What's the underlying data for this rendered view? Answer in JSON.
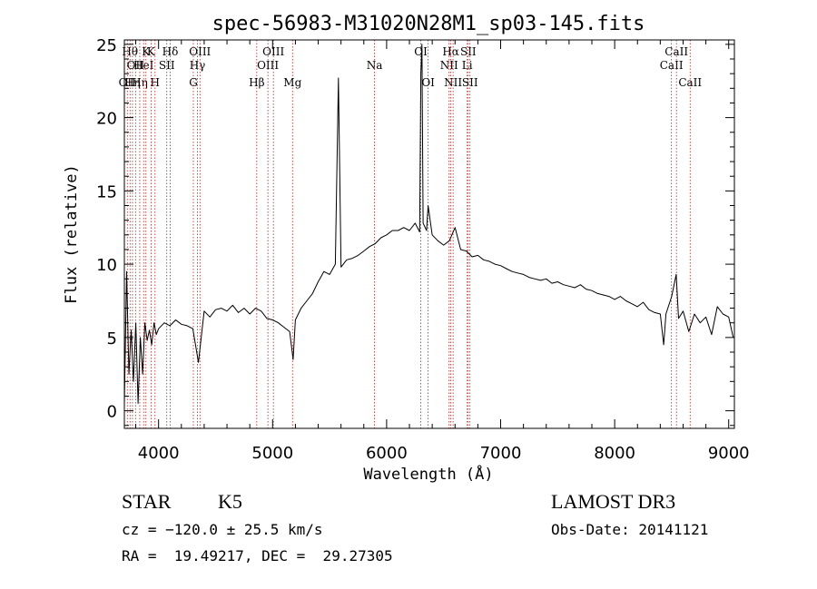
{
  "chart_data": {
    "type": "line",
    "title": "spec-56983-M31020N28M1_sp03-145.fits",
    "xlabel": "Wavelength (Å)",
    "ylabel": "Flux (relative)",
    "xlim": [
      3700,
      9050
    ],
    "ylim": [
      -1.2,
      25.3
    ],
    "xticks": [
      4000,
      5000,
      6000,
      7000,
      8000,
      9000
    ],
    "yticks": [
      0,
      5,
      10,
      15,
      20,
      25
    ],
    "grid": false,
    "legend": "none",
    "line_color": "#000000",
    "marker_color": "#b22222",
    "series": [
      {
        "x": [
          3700,
          3720,
          3740,
          3760,
          3780,
          3800,
          3820,
          3840,
          3860,
          3880,
          3900,
          3920,
          3940,
          3960,
          3980,
          4000,
          4050,
          4100,
          4150,
          4200,
          4250,
          4300,
          4350,
          4400,
          4450,
          4500,
          4550,
          4600,
          4650,
          4700,
          4750,
          4800,
          4850,
          4900,
          4950,
          5000,
          5050,
          5100,
          5150,
          5180,
          5200,
          5250,
          5300,
          5350,
          5400,
          5450,
          5500,
          5550,
          5577,
          5600,
          5650,
          5700,
          5750,
          5800,
          5850,
          5900,
          5950,
          6000,
          6050,
          6100,
          6150,
          6200,
          6250,
          6290,
          6300,
          6310,
          6320,
          6350,
          6364,
          6400,
          6450,
          6500,
          6550,
          6600,
          6650,
          6700,
          6750,
          6800,
          6850,
          6900,
          6950,
          7000,
          7050,
          7100,
          7150,
          7200,
          7250,
          7300,
          7350,
          7400,
          7450,
          7500,
          7550,
          7600,
          7650,
          7700,
          7750,
          7800,
          7850,
          7900,
          7950,
          8000,
          8050,
          8100,
          8150,
          8200,
          8250,
          8300,
          8350,
          8400,
          8430,
          8450,
          8500,
          8540,
          8560,
          8600,
          8650,
          8700,
          8750,
          8800,
          8850,
          8900,
          8950,
          9000,
          9040
        ],
        "y": [
          0.5,
          9.5,
          2.5,
          5.5,
          2.0,
          6.0,
          0.5,
          5.0,
          2.5,
          6.0,
          4.8,
          5.5,
          4.5,
          6.0,
          5.2,
          5.6,
          6.0,
          5.8,
          6.2,
          5.9,
          5.8,
          5.6,
          3.3,
          6.8,
          6.4,
          6.9,
          7.0,
          6.8,
          7.2,
          6.7,
          7.0,
          6.6,
          7.0,
          6.8,
          6.3,
          6.2,
          6.0,
          5.7,
          5.4,
          3.5,
          6.2,
          7.0,
          7.5,
          8.0,
          8.8,
          9.5,
          9.3,
          10.0,
          22.7,
          9.8,
          10.3,
          10.4,
          10.6,
          10.9,
          11.2,
          11.4,
          11.8,
          12.0,
          12.3,
          12.3,
          12.5,
          12.3,
          12.8,
          12.2,
          23.0,
          25.0,
          12.8,
          12.3,
          14.0,
          12.0,
          11.6,
          11.3,
          11.6,
          12.5,
          11.0,
          10.9,
          10.5,
          10.6,
          10.3,
          10.2,
          10.0,
          9.9,
          9.7,
          9.5,
          9.4,
          9.3,
          9.1,
          9.0,
          8.9,
          9.0,
          8.7,
          8.8,
          8.6,
          8.5,
          8.4,
          8.6,
          8.3,
          8.2,
          8.0,
          7.9,
          7.8,
          7.6,
          7.8,
          7.5,
          7.3,
          7.1,
          7.4,
          6.9,
          6.7,
          6.6,
          4.5,
          6.6,
          7.8,
          9.3,
          6.3,
          6.8,
          5.4,
          6.6,
          6.0,
          6.4,
          5.2,
          7.1,
          6.6,
          6.4,
          5.0
        ]
      }
    ],
    "line_markers": [
      {
        "x": 3726,
        "label": "OII",
        "row": 3
      },
      {
        "x": 3750,
        "label": "Hθ",
        "row": 1
      },
      {
        "x": 3771,
        "label": "Hη",
        "row": 3
      },
      {
        "x": 3798,
        "label": "OII",
        "row": 2
      },
      {
        "x": 3835,
        "label": "Hη",
        "row": 3
      },
      {
        "x": 3869,
        "label": "HeI",
        "row": 2
      },
      {
        "x": 3889,
        "label": "K",
        "row": 1
      },
      {
        "x": 3934,
        "label": "K",
        "row": 1
      },
      {
        "x": 3969,
        "label": "H",
        "row": 3
      },
      {
        "x": 4072,
        "label": "SII",
        "row": 2
      },
      {
        "x": 4102,
        "label": "Hδ",
        "row": 1
      },
      {
        "x": 4305,
        "label": "G",
        "row": 3
      },
      {
        "x": 4341,
        "label": "Hγ",
        "row": 2
      },
      {
        "x": 4363,
        "label": "OIII",
        "row": 1
      },
      {
        "x": 4861,
        "label": "Hβ",
        "row": 3
      },
      {
        "x": 4959,
        "label": "OIII",
        "row": 2
      },
      {
        "x": 5007,
        "label": "OIII",
        "row": 1
      },
      {
        "x": 5175,
        "label": "Mg",
        "row": 3
      },
      {
        "x": 5894,
        "label": "Na",
        "row": 2
      },
      {
        "x": 6300,
        "label": "OI",
        "row": 1
      },
      {
        "x": 6364,
        "label": "OI",
        "row": 3
      },
      {
        "x": 6548,
        "label": "NII",
        "row": 2
      },
      {
        "x": 6563,
        "label": "Hα",
        "row": 1
      },
      {
        "x": 6583,
        "label": "NII",
        "row": 3
      },
      {
        "x": 6707,
        "label": "Li",
        "row": 2
      },
      {
        "x": 6716,
        "label": "SII",
        "row": 1
      },
      {
        "x": 6731,
        "label": "SII",
        "row": 3
      },
      {
        "x": 8498,
        "label": "CaII",
        "row": 2
      },
      {
        "x": 8542,
        "label": "CaII",
        "row": 1
      },
      {
        "x": 8662,
        "label": "CaII",
        "row": 3
      }
    ]
  },
  "info": {
    "object_class": "STAR",
    "subclass": "K5",
    "survey": "LAMOST DR3",
    "cz": "cz = −120.0 ± 25.5 km/s",
    "obs_date": "Obs-Date: 20141121",
    "coords": "RA =  19.49217, DEC =  29.27305"
  }
}
